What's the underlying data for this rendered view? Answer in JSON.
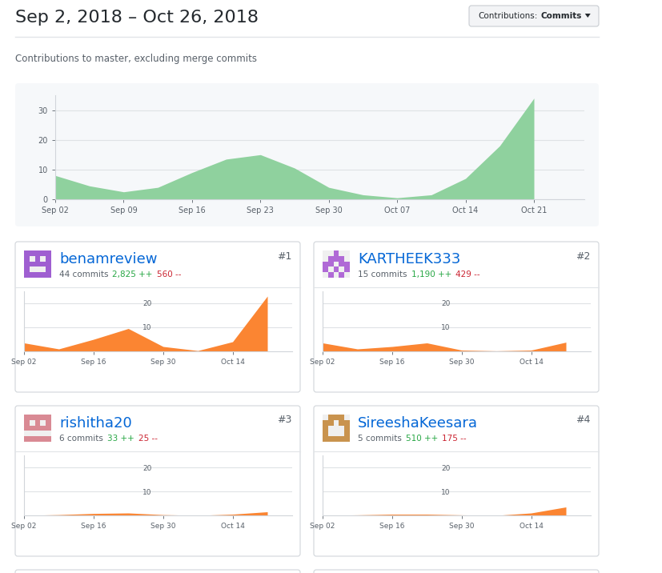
{
  "header": {
    "title": "Sep 2, 2018 – Oct 26, 2018",
    "button_label": "Contributions:",
    "button_value": "Commits",
    "subtitle": "Contributions to master, excluding merge commits"
  },
  "chart_data": [
    {
      "type": "area",
      "categories": [
        "Sep 02",
        null,
        "Sep 09",
        null,
        "Sep 16",
        null,
        "Sep 23",
        null,
        "Sep 30",
        null,
        "Oct 07",
        null,
        "Oct 14",
        null,
        "Oct 21"
      ],
      "values": [
        8,
        4.5,
        2.5,
        4,
        9,
        13.5,
        15,
        10.5,
        4,
        1.5,
        0.5,
        1.5,
        7,
        18,
        34
      ],
      "color": "#8fd19e",
      "ylim": [
        0,
        35
      ],
      "yticks": [
        0,
        10,
        20,
        30
      ],
      "grid": true
    },
    {
      "type": "area",
      "title": "benamreview",
      "subtitle": "44 commits",
      "annotations": [
        "2,825 ++",
        "560 --",
        "#1"
      ],
      "categories": [
        "Sep 02",
        null,
        "Sep 16",
        null,
        "Sep 30",
        null,
        "Oct 14",
        null
      ],
      "values": [
        3.5,
        1,
        5,
        9.5,
        2,
        0.3,
        4,
        23
      ],
      "color": "#fb8532",
      "ylim": [
        0,
        25
      ],
      "yticks": [
        10,
        20
      ],
      "grid": true
    },
    {
      "type": "area",
      "title": "KARTHEEK333",
      "subtitle": "15 commits",
      "annotations": [
        "1,190 ++",
        "429 --",
        "#2"
      ],
      "categories": [
        "Sep 02",
        null,
        "Sep 16",
        null,
        "Sep 30",
        null,
        "Oct 14",
        null
      ],
      "values": [
        3.5,
        1,
        2,
        3.5,
        0.5,
        0.2,
        0.5,
        3.8
      ],
      "color": "#fb8532",
      "ylim": [
        0,
        25
      ],
      "yticks": [
        10,
        20
      ],
      "grid": true
    },
    {
      "type": "area",
      "title": "rishitha20",
      "subtitle": "6 commits",
      "annotations": [
        "33 ++",
        "25 --",
        "#3"
      ],
      "categories": [
        "Sep 02",
        null,
        "Sep 16",
        null,
        "Sep 30",
        null,
        "Oct 14",
        null
      ],
      "values": [
        0,
        0.3,
        0.8,
        1,
        0.3,
        0,
        0.5,
        1.5
      ],
      "color": "#fb8532",
      "ylim": [
        0,
        25
      ],
      "yticks": [
        10,
        20
      ],
      "grid": true
    },
    {
      "type": "area",
      "title": "SireeshaKeesara",
      "subtitle": "5 commits",
      "annotations": [
        "510 ++",
        "175 --",
        "#4"
      ],
      "categories": [
        "Sep 02",
        null,
        "Sep 16",
        null,
        "Sep 30",
        null,
        "Oct 14",
        null
      ],
      "values": [
        0,
        0.2,
        0.5,
        0.5,
        0.2,
        0,
        1,
        3.5
      ],
      "color": "#fb8532",
      "ylim": [
        0,
        25
      ],
      "yticks": [
        10,
        20
      ],
      "grid": true
    }
  ]
}
